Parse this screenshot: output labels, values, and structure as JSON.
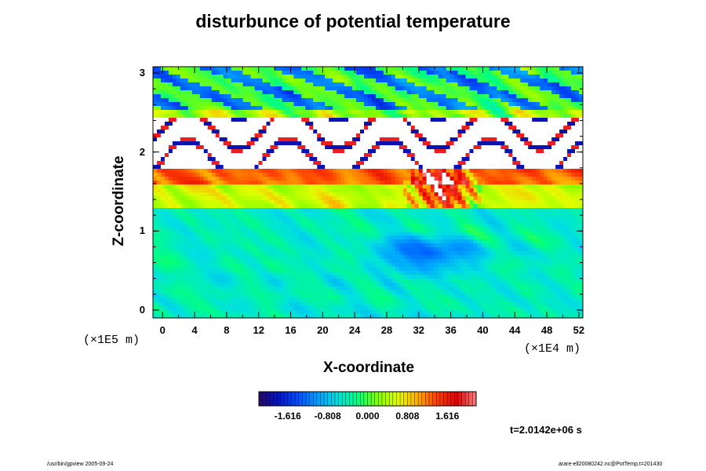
{
  "chart_data": {
    "type": "heatmap",
    "title": "disturbunce of potential temperature",
    "xlabel": "X-coordinate",
    "ylabel": "Z-coordinate",
    "x_unit": "(×1E4 m)",
    "y_unit": "(×1E5 m)",
    "xlim": [
      0,
      52
    ],
    "ylim": [
      0,
      3
    ],
    "x_ticks": [
      "0",
      "4",
      "8",
      "12",
      "16",
      "20",
      "24",
      "28",
      "32",
      "36",
      "40",
      "44",
      "48",
      "52"
    ],
    "y_ticks": [
      "0",
      "1",
      "2",
      "3"
    ],
    "colorbar": {
      "range": [
        -2.2,
        2.2
      ],
      "tick_labels": [
        "-1.616",
        "-0.808",
        "0.000",
        "0.808",
        "1.616"
      ],
      "tick_values": [
        -1.616,
        -0.808,
        0.0,
        0.808,
        1.616
      ],
      "colors": [
        "#2a0a66",
        "#0014c8",
        "#0050ff",
        "#00a0ff",
        "#00e0e0",
        "#00ff80",
        "#80ff00",
        "#e0ff00",
        "#ffb000",
        "#ff4000",
        "#e00000",
        "#ff8080"
      ]
    },
    "annotation_time": "t=2.0142e+06 s",
    "regions": [
      {
        "z_range": [
          2.55,
          3.0
        ],
        "value_level": "near 0, green/cyan with blue eddies"
      },
      {
        "z_range": [
          1.8,
          2.45
        ],
        "value_level": "beyond colorbar range (white) with thin red/blue bands"
      },
      {
        "z_range": [
          1.3,
          1.8
        ],
        "value_level": "positive, green/yellow with red patches"
      },
      {
        "z_range": [
          0,
          1.3
        ],
        "value_level": "slightly negative, cyan/blue with dark eddies"
      }
    ]
  },
  "footer": {
    "left": "/usr/bin/gpview 2005-09-24",
    "right": "arare-ell20080242.nc@PotTemp,t=201430"
  }
}
